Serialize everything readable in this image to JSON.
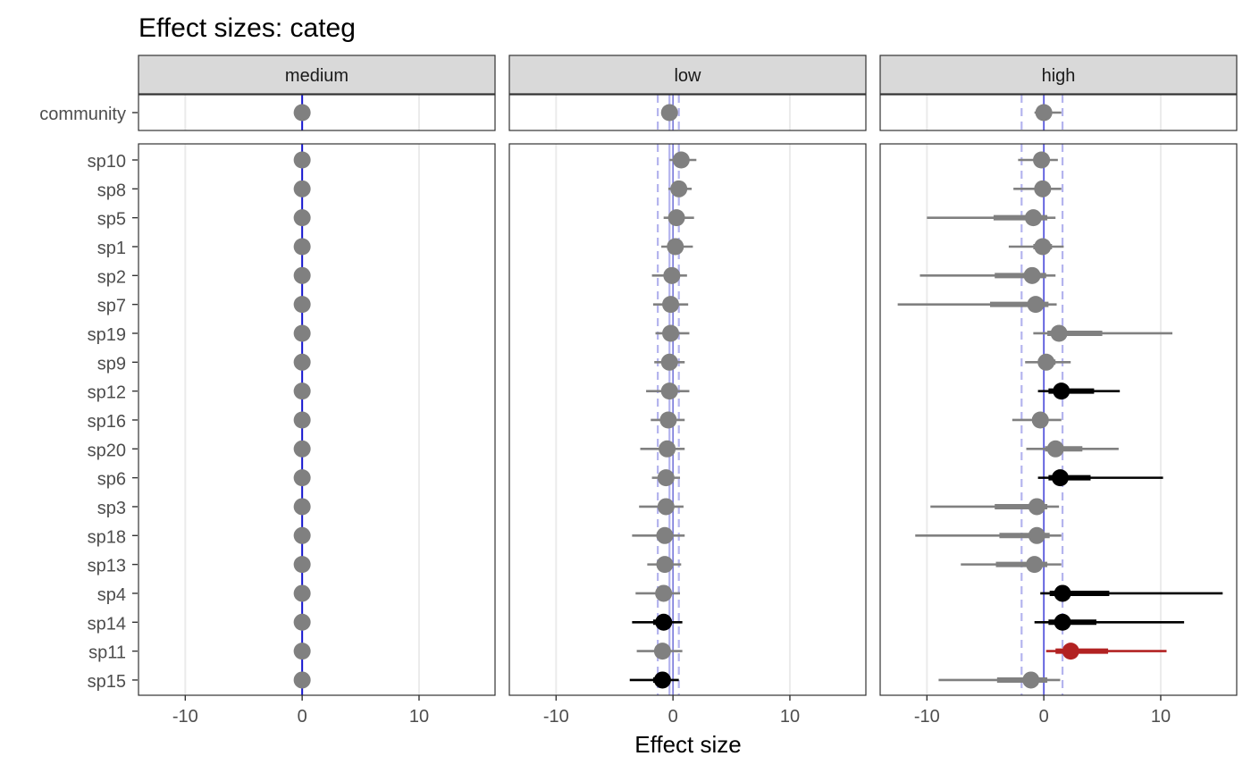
{
  "chart_data": {
    "type": "forest",
    "title": "Effect sizes: categ",
    "xlabel": "Effect size",
    "ylabel": "",
    "xlim": [
      -14,
      16.5
    ],
    "x_ticks": [
      -10,
      0,
      10
    ],
    "x_tick_labels": [
      "-10",
      "0",
      "10"
    ],
    "grid": true,
    "colors": {
      "null": "#808080",
      "positive": "#000000",
      "negative": "#000000",
      "highlight": "#b22222",
      "reference": "#0000cd",
      "community_band": "#b4b4ee"
    },
    "community_label": "community",
    "species": [
      "sp10",
      "sp8",
      "sp5",
      "sp1",
      "sp2",
      "sp7",
      "sp19",
      "sp9",
      "sp12",
      "sp16",
      "sp20",
      "sp6",
      "sp3",
      "sp18",
      "sp13",
      "sp4",
      "sp14",
      "sp11",
      "sp15"
    ],
    "panels": [
      {
        "label": "medium",
        "community": {
          "est": 0,
          "lo1": 0,
          "hi1": 0,
          "lo2": 0,
          "hi2": 0,
          "band_lo": 0,
          "band_hi": 0,
          "color": "null"
        },
        "rows": [
          {
            "est": 0,
            "lo1": 0,
            "hi1": 0,
            "lo2": 0,
            "hi2": 0,
            "color": "null"
          },
          {
            "est": 0,
            "lo1": 0,
            "hi1": 0,
            "lo2": 0,
            "hi2": 0,
            "color": "null"
          },
          {
            "est": 0,
            "lo1": 0,
            "hi1": 0,
            "lo2": 0,
            "hi2": 0,
            "color": "null"
          },
          {
            "est": 0,
            "lo1": 0,
            "hi1": 0,
            "lo2": 0,
            "hi2": 0,
            "color": "null"
          },
          {
            "est": 0,
            "lo1": 0,
            "hi1": 0,
            "lo2": 0,
            "hi2": 0,
            "color": "null"
          },
          {
            "est": 0,
            "lo1": 0,
            "hi1": 0,
            "lo2": 0,
            "hi2": 0,
            "color": "null"
          },
          {
            "est": 0,
            "lo1": 0,
            "hi1": 0,
            "lo2": 0,
            "hi2": 0,
            "color": "null"
          },
          {
            "est": 0,
            "lo1": 0,
            "hi1": 0,
            "lo2": 0,
            "hi2": 0,
            "color": "null"
          },
          {
            "est": 0,
            "lo1": 0,
            "hi1": 0,
            "lo2": 0,
            "hi2": 0,
            "color": "null"
          },
          {
            "est": 0,
            "lo1": 0,
            "hi1": 0,
            "lo2": 0,
            "hi2": 0,
            "color": "null"
          },
          {
            "est": 0,
            "lo1": 0,
            "hi1": 0,
            "lo2": 0,
            "hi2": 0,
            "color": "null"
          },
          {
            "est": 0,
            "lo1": 0,
            "hi1": 0,
            "lo2": 0,
            "hi2": 0,
            "color": "null"
          },
          {
            "est": 0,
            "lo1": 0,
            "hi1": 0,
            "lo2": 0,
            "hi2": 0,
            "color": "null"
          },
          {
            "est": 0,
            "lo1": 0,
            "hi1": 0,
            "lo2": 0,
            "hi2": 0,
            "color": "null"
          },
          {
            "est": 0,
            "lo1": 0,
            "hi1": 0,
            "lo2": 0,
            "hi2": 0,
            "color": "null"
          },
          {
            "est": 0,
            "lo1": 0,
            "hi1": 0,
            "lo2": 0,
            "hi2": 0,
            "color": "null"
          },
          {
            "est": 0,
            "lo1": 0,
            "hi1": 0,
            "lo2": 0,
            "hi2": 0,
            "color": "null"
          },
          {
            "est": 0,
            "lo1": 0,
            "hi1": 0,
            "lo2": 0,
            "hi2": 0,
            "color": "null"
          },
          {
            "est": 0,
            "lo1": 0,
            "hi1": 0,
            "lo2": 0,
            "hi2": 0,
            "color": "null"
          }
        ]
      },
      {
        "label": "low",
        "community": {
          "est": -0.3,
          "lo1": -0.5,
          "hi1": 0.1,
          "lo2": -0.8,
          "hi2": 0.4,
          "band_lo": -1.3,
          "band_hi": 0.5,
          "color": "null"
        },
        "rows": [
          {
            "est": 0.7,
            "lo1": 0.2,
            "hi1": 1.3,
            "lo2": -0.3,
            "hi2": 2.0,
            "color": "null"
          },
          {
            "est": 0.5,
            "lo1": 0.1,
            "hi1": 1.0,
            "lo2": -0.4,
            "hi2": 1.6,
            "color": "null"
          },
          {
            "est": 0.3,
            "lo1": -0.2,
            "hi1": 0.9,
            "lo2": -0.8,
            "hi2": 1.8,
            "color": "null"
          },
          {
            "est": 0.2,
            "lo1": -0.3,
            "hi1": 0.8,
            "lo2": -1.0,
            "hi2": 1.7,
            "color": "null"
          },
          {
            "est": -0.1,
            "lo1": -0.7,
            "hi1": 0.4,
            "lo2": -1.8,
            "hi2": 1.2,
            "color": "null"
          },
          {
            "est": -0.2,
            "lo1": -0.7,
            "hi1": 0.3,
            "lo2": -1.7,
            "hi2": 1.3,
            "color": "null"
          },
          {
            "est": -0.2,
            "lo1": -0.7,
            "hi1": 0.4,
            "lo2": -1.5,
            "hi2": 1.4,
            "color": "null"
          },
          {
            "est": -0.3,
            "lo1": -0.8,
            "hi1": 0.2,
            "lo2": -1.6,
            "hi2": 1.0,
            "color": "null"
          },
          {
            "est": -0.3,
            "lo1": -1.0,
            "hi1": 0.4,
            "lo2": -2.3,
            "hi2": 1.4,
            "color": "null"
          },
          {
            "est": -0.4,
            "lo1": -0.9,
            "hi1": 0.1,
            "lo2": -1.9,
            "hi2": 1.0,
            "color": "null"
          },
          {
            "est": -0.5,
            "lo1": -1.0,
            "hi1": 0.1,
            "lo2": -2.8,
            "hi2": 1.0,
            "color": "null"
          },
          {
            "est": -0.6,
            "lo1": -1.0,
            "hi1": -0.1,
            "lo2": -1.8,
            "hi2": 0.6,
            "color": "null"
          },
          {
            "est": -0.6,
            "lo1": -1.1,
            "hi1": -0.1,
            "lo2": -2.9,
            "hi2": 0.9,
            "color": "null"
          },
          {
            "est": -0.7,
            "lo1": -1.4,
            "hi1": -0.1,
            "lo2": -3.5,
            "hi2": 1.0,
            "color": "null"
          },
          {
            "est": -0.7,
            "lo1": -1.2,
            "hi1": -0.2,
            "lo2": -2.2,
            "hi2": 0.7,
            "color": "null"
          },
          {
            "est": -0.8,
            "lo1": -1.5,
            "hi1": -0.2,
            "lo2": -3.2,
            "hi2": 0.6,
            "color": "null"
          },
          {
            "est": -0.8,
            "lo1": -1.7,
            "hi1": -0.1,
            "lo2": -3.5,
            "hi2": 0.8,
            "color": "positive"
          },
          {
            "est": -0.9,
            "lo1": -1.5,
            "hi1": -0.3,
            "lo2": -3.1,
            "hi2": 0.8,
            "color": "null"
          },
          {
            "est": -0.9,
            "lo1": -1.7,
            "hi1": -0.2,
            "lo2": -3.7,
            "hi2": 0.5,
            "color": "positive"
          }
        ]
      },
      {
        "label": "high",
        "community": {
          "est": 0.0,
          "lo1": -0.4,
          "hi1": 0.4,
          "lo2": -0.8,
          "hi2": 1.5,
          "band_lo": -1.9,
          "band_hi": 1.6,
          "color": "null"
        },
        "rows": [
          {
            "est": -0.2,
            "lo1": -0.8,
            "hi1": 0.5,
            "lo2": -2.2,
            "hi2": 1.2,
            "color": "null"
          },
          {
            "est": -0.1,
            "lo1": -0.8,
            "hi1": 0.6,
            "lo2": -2.6,
            "hi2": 1.5,
            "color": "null"
          },
          {
            "est": -0.9,
            "lo1": -4.3,
            "hi1": 0.3,
            "lo2": -10.0,
            "hi2": 1.0,
            "color": "null"
          },
          {
            "est": -0.1,
            "lo1": -0.9,
            "hi1": 0.7,
            "lo2": -3.0,
            "hi2": 1.7,
            "color": "null"
          },
          {
            "est": -1.0,
            "lo1": -4.2,
            "hi1": 0.2,
            "lo2": -10.6,
            "hi2": 1.0,
            "color": "null"
          },
          {
            "est": -0.7,
            "lo1": -4.6,
            "hi1": 0.4,
            "lo2": -12.5,
            "hi2": 1.1,
            "color": "null"
          },
          {
            "est": 1.3,
            "lo1": 0.3,
            "hi1": 5.0,
            "lo2": -0.9,
            "hi2": 11.0,
            "color": "null"
          },
          {
            "est": 0.2,
            "lo1": -0.5,
            "hi1": 1.0,
            "lo2": -1.6,
            "hi2": 2.3,
            "color": "null"
          },
          {
            "est": 1.5,
            "lo1": 0.4,
            "hi1": 4.3,
            "lo2": -0.5,
            "hi2": 6.5,
            "color": "positive"
          },
          {
            "est": -0.3,
            "lo1": -1.0,
            "hi1": 0.4,
            "lo2": -2.7,
            "hi2": 1.5,
            "color": "null"
          },
          {
            "est": 1.0,
            "lo1": 0.1,
            "hi1": 3.3,
            "lo2": -1.5,
            "hi2": 6.4,
            "color": "null"
          },
          {
            "est": 1.4,
            "lo1": 0.4,
            "hi1": 4.0,
            "lo2": -0.5,
            "hi2": 10.2,
            "color": "positive"
          },
          {
            "est": -0.6,
            "lo1": -4.2,
            "hi1": 0.3,
            "lo2": -9.7,
            "hi2": 1.3,
            "color": "null"
          },
          {
            "est": -0.6,
            "lo1": -3.8,
            "hi1": 0.5,
            "lo2": -11.0,
            "hi2": 1.5,
            "color": "null"
          },
          {
            "est": -0.8,
            "lo1": -4.1,
            "hi1": 0.3,
            "lo2": -7.1,
            "hi2": 1.5,
            "color": "null"
          },
          {
            "est": 1.6,
            "lo1": 0.5,
            "hi1": 5.6,
            "lo2": -0.3,
            "hi2": 15.3,
            "color": "positive"
          },
          {
            "est": 1.6,
            "lo1": 0.4,
            "hi1": 4.5,
            "lo2": -0.8,
            "hi2": 12.0,
            "color": "positive"
          },
          {
            "est": 2.3,
            "lo1": 1.0,
            "hi1": 5.5,
            "lo2": 0.2,
            "hi2": 10.5,
            "color": "highlight"
          },
          {
            "est": -1.1,
            "lo1": -4.0,
            "hi1": 0.3,
            "lo2": -9.0,
            "hi2": 1.4,
            "color": "null"
          }
        ]
      }
    ]
  }
}
